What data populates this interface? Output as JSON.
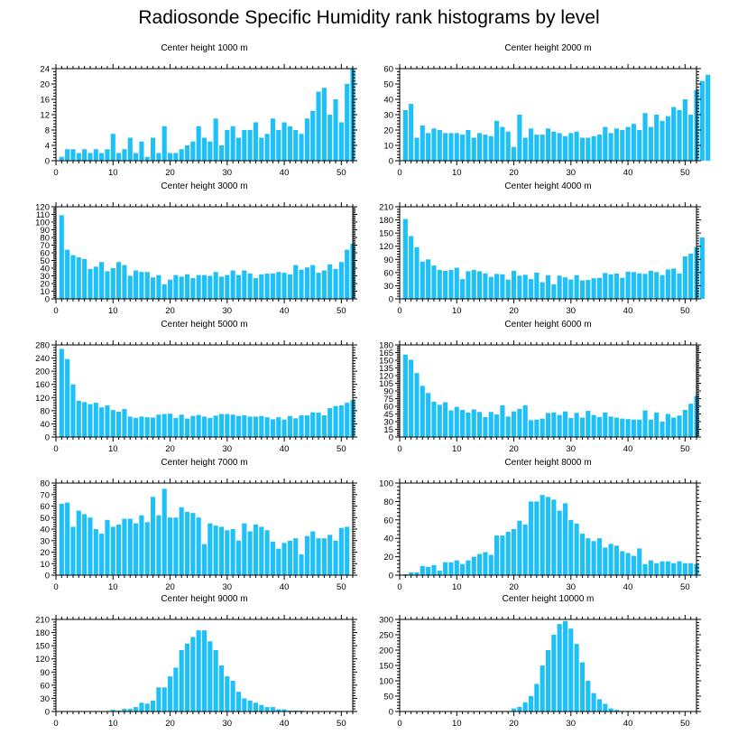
{
  "chart_data": {
    "title": "Radiosonde Specific Humidity rank histograms by level",
    "type": "bar",
    "bar_color": "#1ec0f8",
    "x_range": [
      0,
      52
    ],
    "x_ticks": [
      0,
      10,
      20,
      30,
      40,
      50
    ],
    "panels": [
      {
        "type": "bar",
        "title": "Center height 1000 m",
        "ylim": [
          0,
          24
        ],
        "yticks": [
          0,
          4,
          8,
          12,
          16,
          20,
          24
        ],
        "values": [
          1,
          3,
          3,
          2,
          3,
          2,
          3,
          2,
          3,
          7,
          2,
          3,
          6,
          2,
          5,
          1,
          6,
          2,
          9,
          2,
          2,
          3,
          4,
          5,
          9,
          6,
          5,
          11,
          4,
          8,
          9,
          6,
          8,
          8,
          10,
          6,
          7,
          11,
          8,
          10,
          9,
          8,
          7,
          11,
          13,
          18,
          19,
          12,
          16,
          10,
          20,
          24
        ]
      },
      {
        "type": "bar",
        "title": "Center height 2000 m",
        "ylim": [
          0,
          60
        ],
        "yticks": [
          0,
          10,
          20,
          30,
          40,
          50,
          60
        ],
        "values": [
          33,
          37,
          15,
          23,
          18,
          21,
          20,
          18,
          18,
          18,
          17,
          20,
          15,
          18,
          17,
          16,
          26,
          22,
          19,
          9,
          30,
          15,
          21,
          17,
          17,
          21,
          19,
          18,
          16,
          18,
          19,
          15,
          15,
          16,
          17,
          22,
          18,
          21,
          20,
          22,
          24,
          20,
          31,
          22,
          30,
          26,
          29,
          35,
          33,
          40,
          30,
          46,
          52,
          56
        ]
      },
      {
        "type": "bar",
        "title": "Center height 3000 m",
        "ylim": [
          0,
          120
        ],
        "yticks": [
          0,
          10,
          20,
          30,
          40,
          50,
          60,
          70,
          80,
          90,
          100,
          110,
          120
        ],
        "values": [
          109,
          64,
          57,
          54,
          52,
          39,
          42,
          48,
          36,
          40,
          48,
          44,
          30,
          37,
          35,
          35,
          28,
          31,
          19,
          25,
          31,
          29,
          32,
          27,
          31,
          31,
          30,
          35,
          29,
          31,
          37,
          31,
          37,
          33,
          27,
          32,
          33,
          33,
          35,
          34,
          32,
          44,
          38,
          41,
          44,
          34,
          37,
          45,
          39,
          48,
          64,
          72
        ]
      },
      {
        "type": "bar",
        "title": "Center height 4000 m",
        "ylim": [
          0,
          210
        ],
        "yticks": [
          0,
          30,
          60,
          90,
          120,
          150,
          180,
          210
        ],
        "values": [
          182,
          143,
          118,
          85,
          90,
          76,
          66,
          64,
          66,
          71,
          45,
          63,
          66,
          63,
          58,
          50,
          57,
          56,
          44,
          64,
          53,
          55,
          45,
          60,
          38,
          54,
          33,
          53,
          49,
          44,
          54,
          42,
          43,
          47,
          48,
          59,
          56,
          58,
          48,
          62,
          61,
          58,
          57,
          64,
          61,
          54,
          67,
          69,
          58,
          97,
          103,
          118,
          140
        ]
      },
      {
        "type": "bar",
        "title": "Center height 5000 m",
        "ylim": [
          0,
          280
        ],
        "yticks": [
          0,
          40,
          80,
          120,
          160,
          200,
          240,
          280
        ],
        "values": [
          268,
          237,
          160,
          110,
          106,
          100,
          104,
          90,
          96,
          82,
          77,
          85,
          62,
          58,
          62,
          60,
          59,
          68,
          70,
          71,
          58,
          68,
          56,
          64,
          67,
          62,
          58,
          65,
          70,
          70,
          68,
          64,
          66,
          62,
          62,
          64,
          60,
          54,
          60,
          53,
          64,
          57,
          66,
          66,
          75,
          74,
          66,
          88,
          94,
          96,
          104,
          112
        ]
      },
      {
        "type": "bar",
        "title": "Center height 6000 m",
        "ylim": [
          0,
          180
        ],
        "yticks": [
          0,
          15,
          30,
          45,
          60,
          75,
          90,
          105,
          120,
          135,
          150,
          165,
          180
        ],
        "values": [
          161,
          151,
          125,
          100,
          86,
          69,
          63,
          68,
          52,
          59,
          53,
          48,
          54,
          49,
          39,
          49,
          44,
          62,
          40,
          50,
          55,
          62,
          33,
          34,
          36,
          47,
          48,
          43,
          50,
          37,
          47,
          38,
          51,
          43,
          39,
          48,
          40,
          38,
          36,
          35,
          34,
          34,
          52,
          34,
          48,
          30,
          45,
          38,
          42,
          53,
          65,
          80
        ]
      },
      {
        "type": "bar",
        "title": "Center height 7000 m",
        "ylim": [
          0,
          80
        ],
        "yticks": [
          0,
          10,
          20,
          30,
          40,
          50,
          60,
          70,
          80
        ],
        "values": [
          62,
          63,
          42,
          56,
          53,
          50,
          40,
          36,
          48,
          42,
          44,
          49,
          49,
          45,
          52,
          46,
          68,
          52,
          75,
          50,
          50,
          59,
          55,
          54,
          50,
          27,
          45,
          43,
          42,
          39,
          40,
          30,
          45,
          38,
          44,
          42,
          39,
          29,
          23,
          28,
          30,
          32,
          18,
          34,
          38,
          32,
          32,
          35,
          30,
          41,
          42
        ]
      },
      {
        "type": "bar",
        "title": "Center height 8000 m",
        "ylim": [
          0,
          100
        ],
        "yticks": [
          0,
          20,
          40,
          60,
          80,
          100
        ],
        "values": [
          1,
          3,
          3,
          10,
          9,
          11,
          5,
          14,
          14,
          16,
          12,
          16,
          20,
          23,
          25,
          22,
          43,
          43,
          47,
          50,
          59,
          55,
          80,
          80,
          87,
          85,
          82,
          70,
          78,
          60,
          56,
          45,
          40,
          37,
          40,
          30,
          34,
          32,
          26,
          24,
          21,
          29,
          12,
          16,
          13,
          15,
          15,
          13,
          15,
          13,
          13,
          12
        ]
      },
      {
        "type": "bar",
        "title": "Center height 9000 m",
        "ylim": [
          0,
          210
        ],
        "yticks": [
          0,
          30,
          60,
          90,
          120,
          150,
          180,
          210
        ],
        "values": [
          0,
          0,
          0,
          0,
          0,
          0,
          0,
          0,
          0,
          4,
          2,
          6,
          6,
          10,
          20,
          18,
          25,
          55,
          55,
          80,
          100,
          140,
          155,
          170,
          185,
          185,
          160,
          140,
          105,
          80,
          70,
          45,
          30,
          25,
          20,
          15,
          10,
          10,
          5,
          5,
          2,
          2,
          2,
          0,
          0,
          0,
          0,
          0,
          0,
          0,
          0,
          0
        ]
      },
      {
        "type": "bar",
        "title": "Center height 10000 m",
        "ylim": [
          0,
          300
        ],
        "yticks": [
          0,
          50,
          100,
          150,
          200,
          250,
          300
        ],
        "values": [
          0,
          0,
          0,
          0,
          0,
          0,
          0,
          0,
          0,
          0,
          0,
          0,
          0,
          0,
          0,
          0,
          0,
          0,
          0,
          10,
          15,
          30,
          50,
          90,
          150,
          200,
          250,
          285,
          295,
          270,
          220,
          160,
          100,
          60,
          40,
          25,
          10,
          5,
          2,
          2,
          0,
          0,
          0,
          0,
          0,
          0,
          0,
          0,
          0,
          0,
          0,
          0
        ]
      }
    ]
  }
}
